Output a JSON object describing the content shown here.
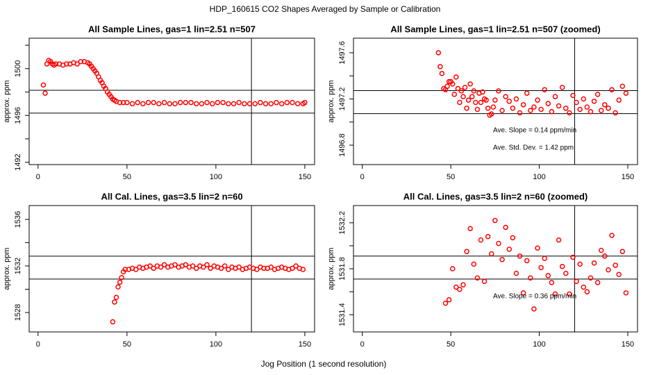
{
  "title": "HDP_160615  CO2 Shapes Averaged by Sample or Calibration",
  "xlabel": "Jog Position (1 second resolution)",
  "chart_data": [
    {
      "type": "scatter",
      "title": "All Sample Lines, gas=1 lin=2.51 n=507",
      "ylabel": "approx. ppm",
      "color": "#ff0000",
      "xlim": [
        -5,
        155.5
      ],
      "xticks": [
        0,
        50,
        100,
        150
      ],
      "ylim": [
        1491.8,
        1502.6
      ],
      "yticks": [
        1492,
        1496,
        1500
      ],
      "yticks_minor": [
        1494,
        1498,
        1502
      ],
      "hlines": [
        1498.15,
        1496.2
      ],
      "vline": 120,
      "x": [
        3,
        4,
        5,
        6,
        7,
        8,
        9,
        10,
        12,
        14,
        16,
        18,
        20,
        22,
        24,
        26,
        28,
        29,
        30,
        31,
        32,
        33,
        34,
        35,
        36,
        37,
        38,
        39,
        40,
        41,
        42,
        43,
        44,
        46,
        48,
        50,
        53,
        56,
        59,
        62,
        65,
        68,
        71,
        74,
        77,
        80,
        83,
        86,
        89,
        92,
        95,
        98,
        101,
        104,
        107,
        110,
        113,
        116,
        119,
        122,
        125,
        128,
        131,
        134,
        137,
        140,
        143,
        146,
        149,
        150
      ],
      "values": [
        1498.6,
        1497.9,
        1500.4,
        1500.7,
        1500.6,
        1500.4,
        1500.3,
        1500.4,
        1500.4,
        1500.3,
        1500.4,
        1500.4,
        1500.5,
        1500.4,
        1500.6,
        1500.6,
        1500.5,
        1500.4,
        1500.2,
        1500.0,
        1499.8,
        1499.6,
        1499.3,
        1499.0,
        1498.8,
        1498.5,
        1498.3,
        1498.0,
        1497.8,
        1497.6,
        1497.4,
        1497.3,
        1497.2,
        1497.1,
        1497.1,
        1497.1,
        1497.0,
        1497.1,
        1497.0,
        1497.1,
        1497.1,
        1497.0,
        1497.1,
        1497.0,
        1497.0,
        1497.1,
        1497.1,
        1497.1,
        1497.0,
        1497.0,
        1497.1,
        1497.0,
        1497.1,
        1497.1,
        1497.0,
        1497.0,
        1497.1,
        1497.0,
        1497.0,
        1497.0,
        1497.1,
        1497.0,
        1497.0,
        1497.1,
        1497.0,
        1497.1,
        1497.1,
        1497.0,
        1497.0,
        1497.1
      ]
    },
    {
      "type": "scatter",
      "title": "All Sample Lines, gas=1 lin=2.51 n=507 (zoomed)",
      "ylabel": "approx. ppm",
      "color": "#ff0000",
      "xlim": [
        -5,
        155.5
      ],
      "xticks": [
        0,
        50,
        100,
        150
      ],
      "ylim": [
        1496.632,
        1497.726
      ],
      "yticks": [
        1496.8,
        1497.2,
        1497.6
      ],
      "yticks_minor": [
        1497.0,
        1497.4
      ],
      "hlines": [
        1497.272,
        1497.073
      ],
      "vline": 120,
      "annotations": [
        "Ave. Slope =  0.14  ppm/min",
        "Ave. Std. Dev. =  1.42  ppm"
      ],
      "x": [
        43,
        44,
        45,
        46,
        47,
        48,
        49,
        50,
        51,
        52,
        53,
        54,
        55,
        56,
        57,
        58,
        59,
        60,
        61,
        62,
        63,
        64,
        65,
        66,
        67,
        68,
        69,
        70,
        71,
        72,
        73,
        74,
        75,
        77,
        79,
        81,
        83,
        85,
        87,
        89,
        91,
        93,
        95,
        97,
        99,
        101,
        103,
        105,
        107,
        109,
        111,
        113,
        115,
        117,
        119,
        121,
        123,
        125,
        127,
        129,
        131,
        133,
        135,
        137,
        139,
        141,
        143,
        145,
        147,
        149
      ],
      "values": [
        1497.6,
        1497.48,
        1497.42,
        1497.29,
        1497.28,
        1497.31,
        1497.35,
        1497.35,
        1497.33,
        1497.24,
        1497.39,
        1497.29,
        1497.17,
        1497.27,
        1497.22,
        1497.3,
        1497.12,
        1497.19,
        1497.33,
        1497.22,
        1497.27,
        1497.17,
        1497.11,
        1497.25,
        1497.17,
        1497.26,
        1497.2,
        1497.19,
        1497.12,
        1497.06,
        1497.07,
        1497.13,
        1497.19,
        1497.27,
        1497.1,
        1497.22,
        1497.18,
        1497.12,
        1497.2,
        1497.08,
        1497.15,
        1497.25,
        1497.1,
        1497.13,
        1497.19,
        1497.11,
        1497.28,
        1497.16,
        1497.09,
        1497.22,
        1497.14,
        1497.3,
        1497.12,
        1497.08,
        1497.23,
        1497.17,
        1497.11,
        1497.2,
        1497.13,
        1497.09,
        1497.18,
        1497.24,
        1497.1,
        1497.15,
        1497.12,
        1497.28,
        1497.08,
        1497.19,
        1497.31,
        1497.25
      ]
    },
    {
      "type": "scatter",
      "title": "All Cal. Lines, gas=3.5 lin=2 n=60",
      "ylabel": "approx. ppm",
      "color": "#ff0000",
      "xlim": [
        -5,
        155.5
      ],
      "xticks": [
        0,
        50,
        100,
        150
      ],
      "ylim": [
        1526.33,
        1537.19
      ],
      "yticks": [
        1528,
        1532,
        1536
      ],
      "yticks_minor": [
        1530,
        1534
      ],
      "hlines": [
        1532.84,
        1530.87
      ],
      "vline": 120,
      "x": [
        42,
        43,
        44,
        45,
        46,
        47,
        48,
        49,
        51,
        53,
        55,
        57,
        59,
        61,
        63,
        65,
        67,
        69,
        71,
        73,
        75,
        77,
        79,
        81,
        83,
        85,
        87,
        89,
        91,
        93,
        95,
        97,
        99,
        101,
        103,
        105,
        107,
        109,
        111,
        113,
        115,
        117,
        119,
        121,
        123,
        125,
        127,
        129,
        131,
        133,
        135,
        137,
        139,
        141,
        143,
        145,
        147,
        149
      ],
      "values": [
        1527.2,
        1528.9,
        1529.3,
        1530.2,
        1530.6,
        1531.0,
        1531.5,
        1531.7,
        1531.7,
        1531.8,
        1531.7,
        1531.9,
        1531.8,
        1531.9,
        1532.0,
        1531.8,
        1532.0,
        1531.9,
        1532.1,
        1531.9,
        1532.0,
        1532.1,
        1531.9,
        1532.0,
        1532.1,
        1531.9,
        1532.0,
        1531.8,
        1532.0,
        1531.9,
        1532.1,
        1531.8,
        1532.0,
        1531.9,
        1531.8,
        1532.0,
        1531.7,
        1531.9,
        1531.8,
        1531.9,
        1531.7,
        1531.8,
        1531.9,
        1531.8,
        1531.7,
        1531.9,
        1531.8,
        1531.8,
        1531.9,
        1531.7,
        1531.8,
        1531.9,
        1531.8,
        1531.7,
        1531.8,
        1532.0,
        1531.8,
        1531.7
      ]
    },
    {
      "type": "scatter",
      "title": "All Cal. Lines, gas=3.5 lin=2 n=60 (zoomed)",
      "ylabel": "approx. ppm",
      "color": "#ff0000",
      "xlim": [
        -5,
        155.5
      ],
      "xticks": [
        0,
        50,
        100,
        150
      ],
      "ylim": [
        1531.25,
        1532.35
      ],
      "yticks": [
        1531.4,
        1531.8,
        1532.2
      ],
      "yticks_minor": [
        1531.6,
        1532.0
      ],
      "hlines": [
        1531.91,
        1531.71
      ],
      "vline": 120,
      "annotations": [
        "Ave. Slope =  0.36  ppm/min"
      ],
      "x": [
        47,
        49,
        51,
        53,
        55,
        57,
        59,
        61,
        63,
        65,
        67,
        69,
        71,
        73,
        75,
        77,
        79,
        81,
        83,
        85,
        87,
        89,
        91,
        93,
        95,
        97,
        99,
        101,
        103,
        105,
        107,
        109,
        111,
        113,
        115,
        117,
        119,
        121,
        123,
        125,
        127,
        129,
        131,
        133,
        135,
        137,
        139,
        141,
        143,
        145,
        147,
        149
      ],
      "values": [
        1531.5,
        1531.53,
        1531.8,
        1531.64,
        1531.62,
        1531.66,
        1531.95,
        1532.15,
        1531.84,
        1531.72,
        1532.05,
        1531.69,
        1532.08,
        1531.93,
        1532.22,
        1532.02,
        1531.88,
        1532.16,
        1531.97,
        1532.07,
        1531.76,
        1531.91,
        1531.59,
        1531.87,
        1531.72,
        1531.45,
        1531.98,
        1531.81,
        1531.89,
        1531.74,
        1531.68,
        1531.58,
        1532.05,
        1531.82,
        1531.76,
        1531.58,
        1531.9,
        1531.69,
        1531.84,
        1531.64,
        1531.6,
        1531.72,
        1531.85,
        1531.68,
        1531.96,
        1531.91,
        1531.79,
        1532.09,
        1531.83,
        1531.75,
        1531.95,
        1531.59
      ]
    }
  ]
}
